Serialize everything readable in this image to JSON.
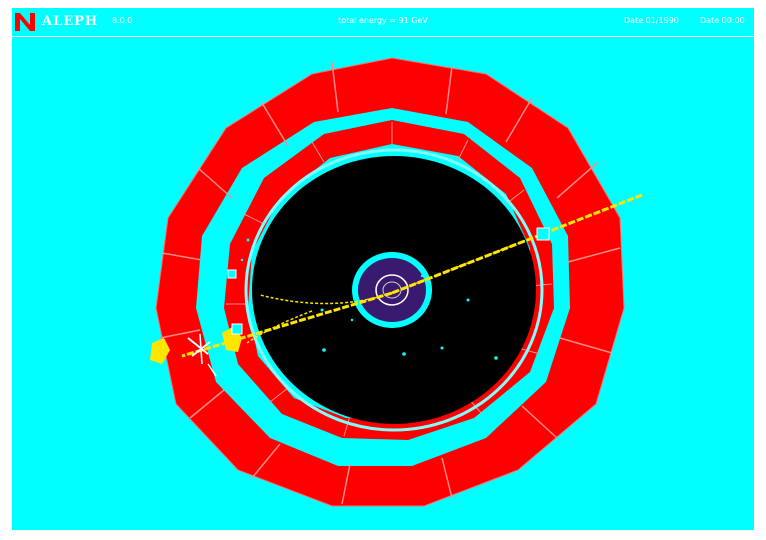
{
  "header": {
    "brand": "ALEPH",
    "run_info": "8.0.0",
    "center_text": "total energy = 91 GeV",
    "date_text": "Date 01/1990",
    "time_text": "Date 00:00"
  },
  "colors": {
    "background": "#00ffff",
    "calorimeter": "#ff0000",
    "tracker": "#000000",
    "vertex": "#3a1a6e",
    "track": "#ffe600",
    "hit": "#00ffff",
    "text": "#ffffff"
  },
  "icons": {
    "logo": "aleph-logo-icon"
  }
}
